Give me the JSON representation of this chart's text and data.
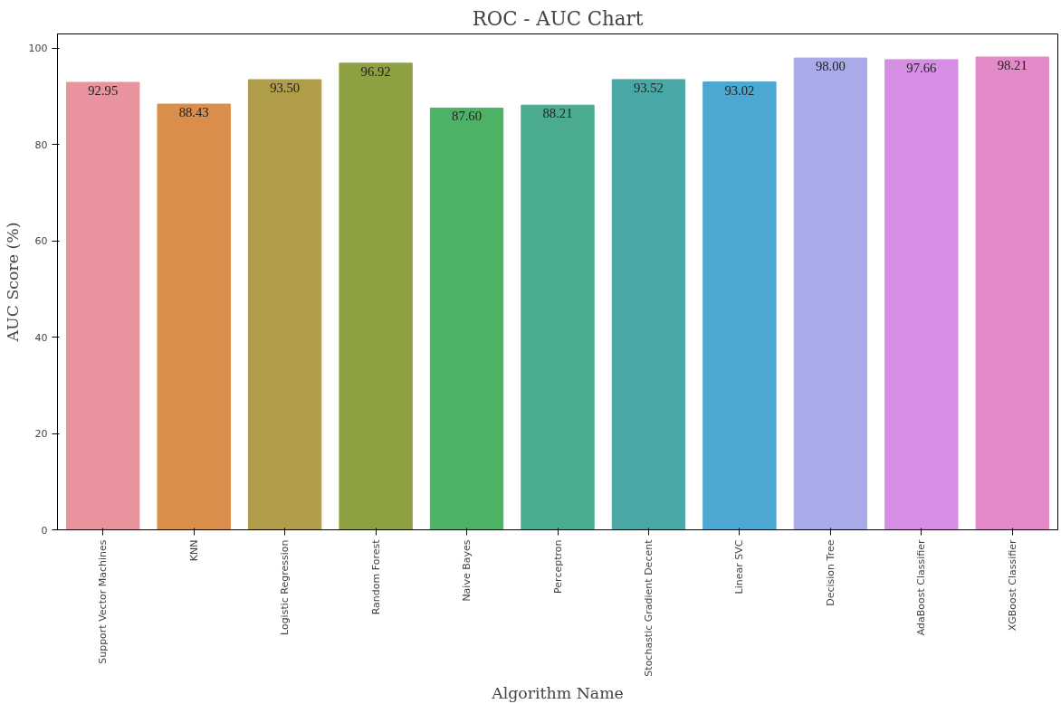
{
  "chart_data": {
    "type": "bar",
    "title": "ROC - AUC Chart",
    "xlabel": "Algorithm Name",
    "ylabel": "AUC Score (%)",
    "categories": [
      "Support Vector Machines",
      "KNN",
      "Logistic Regression",
      "Random Forest",
      "Naive Bayes",
      "Perceptron",
      "Stochastic Gradient Decent",
      "Linear SVC",
      "Decision Tree",
      "AdaBoost Classifier",
      "XGBoost Classifier"
    ],
    "values": [
      92.95,
      88.43,
      93.5,
      96.92,
      87.6,
      88.21,
      93.52,
      93.02,
      98.0,
      97.66,
      98.21
    ],
    "value_labels": [
      "92.95",
      "88.43",
      "93.50",
      "96.92",
      "87.60",
      "88.21",
      "93.52",
      "93.02",
      "98.00",
      "97.66",
      "98.21"
    ],
    "colors": [
      "#e8939d",
      "#d98e4b",
      "#b09d4a",
      "#8ea142",
      "#4cb266",
      "#4aab8f",
      "#4aa8a6",
      "#4ca7d2",
      "#a8aaea",
      "#d68ee5",
      "#e48ac8"
    ],
    "ylim": [
      0,
      103
    ],
    "yticks": [
      0,
      20,
      40,
      60,
      80,
      100
    ],
    "grid": false
  }
}
